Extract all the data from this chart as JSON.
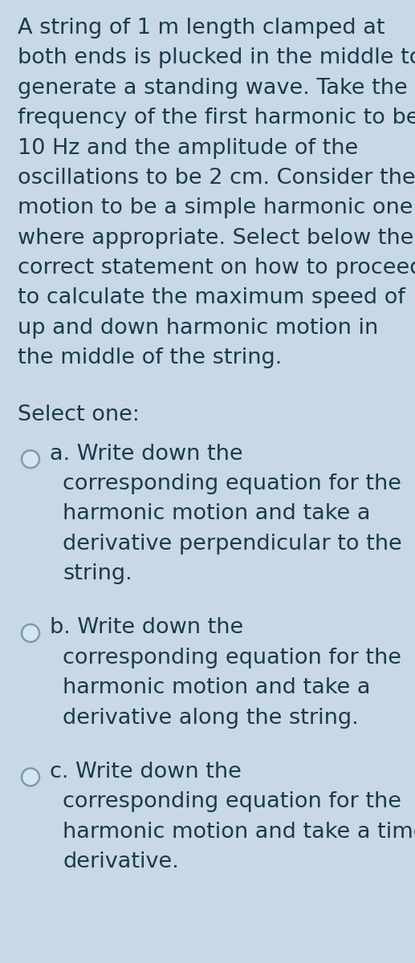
{
  "background_color": "#c8d8e5",
  "text_color": "#1b3a4b",
  "font_size_body": 19.5,
  "font_size_options": 19.5,
  "question_text": "A string of 1 m length clamped at both ends is plucked in the middle to generate a standing wave. Take the frequency of the first harmonic to be 10 Hz and the amplitude of the oscillations to be 2 cm. Consider the motion to be a simple harmonic one where appropriate. Select below the correct statement on how to proceed to calculate the maximum speed of up and down harmonic motion in the middle of the string.",
  "select_label": "Select one:",
  "options": [
    {
      "label": "a.",
      "text": "Write down the\ncorresponding equation for the\nharmonic motion and take a\nderivative perpendicular to the\nstring."
    },
    {
      "label": "b.",
      "text": "Write down the\ncorresponding equation for the\nharmonic motion and take a\nderivative along the string."
    },
    {
      "label": "c.",
      "text": "Write down the\ncorresponding equation for the\nharmonic motion and take a time\nderivative."
    }
  ],
  "question_lines": [
    "A string of 1 m length clamped at",
    "both ends is plucked in the middle to",
    "generate a standing wave. Take the",
    "frequency of the first harmonic to be",
    "10 Hz and the amplitude of the",
    "oscillations to be 2 cm. Consider the",
    "motion to be a simple harmonic one",
    "where appropriate. Select below the",
    "correct statement on how to proceed",
    "to calculate the maximum speed of",
    "up and down harmonic motion in",
    "the middle of the string."
  ]
}
